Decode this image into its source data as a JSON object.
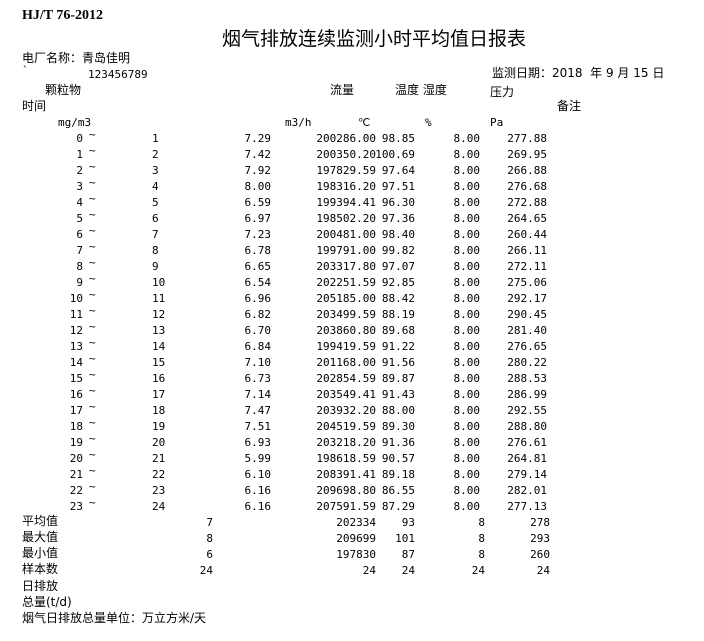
{
  "header": {
    "standard": "HJ/T 76-2012",
    "title": "烟气排放连续监测小时平均值日报表",
    "plant": "电厂名称：青岛佳明",
    "mark": "`",
    "code": "123456789",
    "date": "监测日期：2018  年 9 月 15 日"
  },
  "table": {
    "headers": {
      "dust": "颗粒物",
      "flow": "流量",
      "temp_humid": "温度 湿度",
      "pressure": "压力",
      "time": "时间",
      "remark": "备注"
    },
    "units": [
      "mg/m3",
      "m3/h",
      "℃",
      "%",
      "Pa"
    ],
    "rows": [
      [
        "0",
        "~",
        "1",
        "7.29",
        "200286.00",
        "98.85",
        "8.00",
        "277.88"
      ],
      [
        "1",
        "~",
        "2",
        "7.42",
        "200350.20",
        "100.69",
        "8.00",
        "269.95"
      ],
      [
        "2",
        "~",
        "3",
        "7.92",
        "197829.59",
        "97.64",
        "8.00",
        "266.88"
      ],
      [
        "3",
        "~",
        "4",
        "8.00",
        "198316.20",
        "97.51",
        "8.00",
        "276.68"
      ],
      [
        "4",
        "~",
        "5",
        "6.59",
        "199394.41",
        "96.30",
        "8.00",
        "272.88"
      ],
      [
        "5",
        "~",
        "6",
        "6.97",
        "198502.20",
        "97.36",
        "8.00",
        "264.65"
      ],
      [
        "6",
        "~",
        "7",
        "7.23",
        "200481.00",
        "98.40",
        "8.00",
        "260.44"
      ],
      [
        "7",
        "~",
        "8",
        "6.78",
        "199791.00",
        "99.82",
        "8.00",
        "266.11"
      ],
      [
        "8",
        "~",
        "9",
        "6.65",
        "203317.80",
        "97.07",
        "8.00",
        "272.11"
      ],
      [
        "9",
        "~",
        "10",
        "6.54",
        "202251.59",
        "92.85",
        "8.00",
        "275.06"
      ],
      [
        "10",
        "~",
        "11",
        "6.96",
        "205185.00",
        "88.42",
        "8.00",
        "292.17"
      ],
      [
        "11",
        "~",
        "12",
        "6.82",
        "203499.59",
        "88.19",
        "8.00",
        "290.45"
      ],
      [
        "12",
        "~",
        "13",
        "6.70",
        "203860.80",
        "89.68",
        "8.00",
        "281.40"
      ],
      [
        "13",
        "~",
        "14",
        "6.84",
        "199419.59",
        "91.22",
        "8.00",
        "276.65"
      ],
      [
        "14",
        "~",
        "15",
        "7.10",
        "201168.00",
        "91.56",
        "8.00",
        "280.22"
      ],
      [
        "15",
        "~",
        "16",
        "6.73",
        "202854.59",
        "89.87",
        "8.00",
        "288.53"
      ],
      [
        "16",
        "~",
        "17",
        "7.14",
        "203549.41",
        "91.43",
        "8.00",
        "286.99"
      ],
      [
        "17",
        "~",
        "18",
        "7.47",
        "203932.20",
        "88.00",
        "8.00",
        "292.55"
      ],
      [
        "18",
        "~",
        "19",
        "7.51",
        "204519.59",
        "89.30",
        "8.00",
        "288.80"
      ],
      [
        "19",
        "~",
        "20",
        "6.93",
        "203218.20",
        "91.36",
        "8.00",
        "276.61"
      ],
      [
        "20",
        "~",
        "21",
        "5.99",
        "198618.59",
        "90.57",
        "8.00",
        "264.81"
      ],
      [
        "21",
        "~",
        "22",
        "6.10",
        "208391.41",
        "89.18",
        "8.00",
        "279.14"
      ],
      [
        "22",
        "~",
        "23",
        "6.16",
        "209698.80",
        "86.55",
        "8.00",
        "282.01"
      ],
      [
        "23",
        "~",
        "24",
        "6.16",
        "207591.59",
        "87.29",
        "8.00",
        "277.13"
      ]
    ],
    "summary": [
      {
        "label": "平均值",
        "values": [
          "7",
          "202334",
          "93",
          "8",
          "278"
        ]
      },
      {
        "label": "最大值",
        "values": [
          "8",
          "209699",
          "101",
          "8",
          "293"
        ]
      },
      {
        "label": "最小值",
        "values": [
          "6",
          "197830",
          "87",
          "8",
          "260"
        ]
      },
      {
        "label": "样本数",
        "values": [
          "24",
          "24",
          "24",
          "24",
          "24"
        ]
      }
    ]
  },
  "footer": {
    "emission": "日排放",
    "total": "总量(t/d)",
    "unit_note": "烟气日排放总量单位：万立方米/天"
  }
}
